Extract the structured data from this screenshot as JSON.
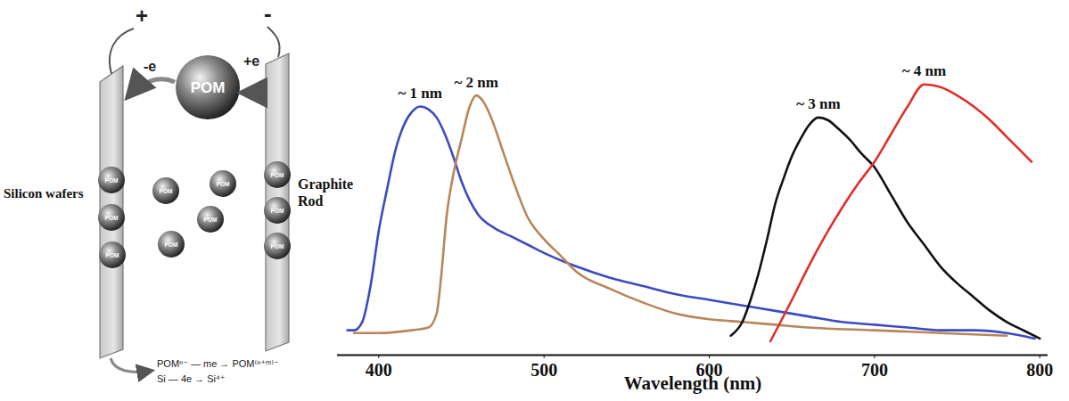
{
  "diagram": {
    "electrodes": {
      "anode_sign": "+",
      "cathode_sign": "-",
      "left_label": "Silicon wafers",
      "right_label": "Graphite Rod"
    },
    "center_particle": {
      "label": "POM",
      "left_arrow": "-e",
      "right_arrow": "+e"
    },
    "small_particles": {
      "label": "POM",
      "count": 10
    },
    "reactions": [
      "POMⁿ⁻ — me → POM⁽ⁿ⁺ᵐ⁾⁻",
      "Si — 4e → Si⁴⁺"
    ]
  },
  "chart_data": {
    "type": "line",
    "x_label": "Wavelength (nm)",
    "xlim": [
      375,
      805
    ],
    "xticks": [
      400,
      500,
      600,
      700,
      800
    ],
    "ylim": [
      0,
      1
    ],
    "yticks": [],
    "tick_labels": "x",
    "grid": false,
    "series": [
      {
        "name": "~ 1 nm",
        "color": "#3a4cc0",
        "x": [
          381,
          385,
          390,
          395,
          400,
          405,
          410,
          415,
          420,
          425,
          430,
          435,
          440,
          445,
          450,
          455,
          460,
          470,
          480,
          490,
          500,
          520,
          540,
          560,
          580,
          600,
          620,
          640,
          660,
          680,
          700,
          720,
          740,
          760,
          780,
          797
        ],
        "values": [
          0.09,
          0.09,
          0.12,
          0.25,
          0.45,
          0.6,
          0.74,
          0.83,
          0.88,
          0.9,
          0.89,
          0.86,
          0.8,
          0.72,
          0.63,
          0.56,
          0.51,
          0.46,
          0.43,
          0.4,
          0.37,
          0.32,
          0.28,
          0.25,
          0.22,
          0.2,
          0.18,
          0.16,
          0.14,
          0.12,
          0.11,
          0.1,
          0.09,
          0.09,
          0.08,
          0.06
        ]
      },
      {
        "name": "~ 2 nm",
        "color": "#b8865a",
        "x": [
          385,
          400,
          420,
          430,
          435,
          438,
          441,
          445,
          450,
          455,
          459,
          463,
          468,
          475,
          482,
          490,
          500,
          510,
          520,
          540,
          560,
          580,
          600,
          620,
          640,
          660,
          700,
          740,
          780
        ],
        "values": [
          0.08,
          0.08,
          0.09,
          0.1,
          0.15,
          0.3,
          0.5,
          0.65,
          0.78,
          0.9,
          0.94,
          0.92,
          0.86,
          0.74,
          0.62,
          0.5,
          0.42,
          0.36,
          0.3,
          0.24,
          0.19,
          0.15,
          0.13,
          0.12,
          0.11,
          0.1,
          0.09,
          0.08,
          0.07
        ]
      },
      {
        "name": "~ 3 nm",
        "color": "#111111",
        "x": [
          613,
          620,
          625,
          630,
          635,
          640,
          645,
          650,
          655,
          660,
          666,
          672,
          678,
          685,
          692,
          700,
          710,
          720,
          730,
          740,
          750,
          760,
          770,
          780,
          790,
          800
        ],
        "values": [
          0.07,
          0.12,
          0.2,
          0.3,
          0.42,
          0.55,
          0.64,
          0.72,
          0.78,
          0.83,
          0.86,
          0.85,
          0.82,
          0.78,
          0.73,
          0.68,
          0.58,
          0.48,
          0.4,
          0.32,
          0.26,
          0.21,
          0.16,
          0.12,
          0.09,
          0.06
        ]
      },
      {
        "name": "~ 4 nm",
        "color": "#e0302a",
        "x": [
          637,
          650,
          660,
          670,
          680,
          690,
          700,
          710,
          720,
          730,
          740,
          750,
          760,
          770,
          780,
          790,
          795
        ],
        "values": [
          0.05,
          0.2,
          0.32,
          0.43,
          0.53,
          0.62,
          0.7,
          0.8,
          0.9,
          0.98,
          0.97,
          0.94,
          0.9,
          0.85,
          0.79,
          0.73,
          0.7
        ]
      }
    ]
  }
}
